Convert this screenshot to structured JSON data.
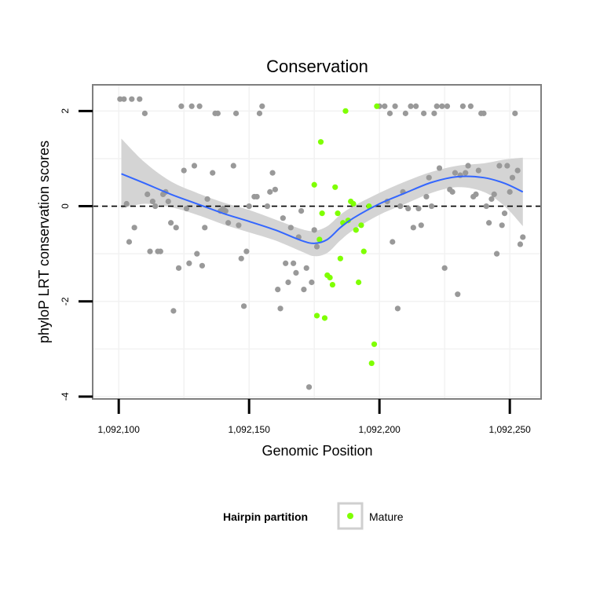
{
  "chart_data": {
    "type": "scatter",
    "title": "Conservation",
    "xlabel": "Genomic Position",
    "ylabel": "phyloP LRT conservation scores",
    "xlim": [
      1092090,
      1092262
    ],
    "ylim": [
      -4.05,
      2.55
    ],
    "x_ticks": [
      {
        "value": 1092100,
        "label": "1,092,100"
      },
      {
        "value": 1092150,
        "label": "1,092,150"
      },
      {
        "value": 1092200,
        "label": "1,092,200"
      },
      {
        "value": 1092250,
        "label": "1,092,250"
      }
    ],
    "y_ticks": [
      {
        "value": 2,
        "label": "2"
      },
      {
        "value": 0,
        "label": "0"
      },
      {
        "value": -2,
        "label": "-2"
      },
      {
        "value": -4,
        "label": "-4"
      }
    ],
    "reference_line": 0,
    "colors": {
      "other_points": "#999999",
      "mature_points": "#7fff00",
      "smooth_line": "#3366ff",
      "confidence_band": "#d4d4d4",
      "panel_border": "#7f7f7f",
      "gridline": "#f2f2f2"
    },
    "legend": {
      "title": "Hairpin partition",
      "items": [
        {
          "label": "Mature",
          "color": "#7fff00"
        }
      ]
    },
    "series": [
      {
        "name": "Other",
        "points": [
          [
            1092100.5,
            2.25
          ],
          [
            1092102,
            2.25
          ],
          [
            1092105,
            2.25
          ],
          [
            1092108,
            2.25
          ],
          [
            1092110,
            1.95
          ],
          [
            1092111,
            0.25
          ],
          [
            1092113,
            0.1
          ],
          [
            1092112,
            -0.95
          ],
          [
            1092115,
            -0.95
          ],
          [
            1092116,
            -0.95
          ],
          [
            1092117,
            0.25
          ],
          [
            1092118,
            0.3
          ],
          [
            1092119,
            0.1
          ],
          [
            1092120,
            -0.35
          ],
          [
            1092121,
            -2.2
          ],
          [
            1092122,
            -0.45
          ],
          [
            1092123,
            -1.3
          ],
          [
            1092124,
            2.1
          ],
          [
            1092125,
            0.75
          ],
          [
            1092126,
            -0.05
          ],
          [
            1092127,
            -1.2
          ],
          [
            1092128,
            2.1
          ],
          [
            1092129,
            0.85
          ],
          [
            1092130,
            -1.0
          ],
          [
            1092131,
            2.1
          ],
          [
            1092132,
            -1.25
          ],
          [
            1092133,
            -0.45
          ],
          [
            1092134,
            0.15
          ],
          [
            1092136,
            0.7
          ],
          [
            1092137,
            1.95
          ],
          [
            1092138,
            1.95
          ],
          [
            1092139,
            -0.1
          ],
          [
            1092140,
            -0.05
          ],
          [
            1092141,
            -0.1
          ],
          [
            1092142,
            -0.35
          ],
          [
            1092144,
            0.85
          ],
          [
            1092145,
            1.95
          ],
          [
            1092146,
            -0.4
          ],
          [
            1092147,
            -1.1
          ],
          [
            1092148,
            -2.1
          ],
          [
            1092149,
            -0.95
          ],
          [
            1092150,
            0.0
          ],
          [
            1092152,
            0.2
          ],
          [
            1092153,
            0.2
          ],
          [
            1092154,
            1.95
          ],
          [
            1092155,
            2.1
          ],
          [
            1092157,
            0.0
          ],
          [
            1092158,
            0.3
          ],
          [
            1092159,
            0.7
          ],
          [
            1092160,
            0.35
          ],
          [
            1092161,
            -1.75
          ],
          [
            1092162,
            -2.15
          ],
          [
            1092163,
            -0.25
          ],
          [
            1092164,
            -1.2
          ],
          [
            1092165,
            -1.6
          ],
          [
            1092166,
            -0.45
          ],
          [
            1092167,
            -1.2
          ],
          [
            1092168,
            -1.4
          ],
          [
            1092169,
            -0.65
          ],
          [
            1092170,
            -0.1
          ],
          [
            1092171,
            -1.75
          ],
          [
            1092172,
            -1.3
          ],
          [
            1092173,
            -3.8
          ],
          [
            1092174,
            -1.6
          ],
          [
            1092175,
            -0.5
          ],
          [
            1092176,
            -0.85
          ],
          [
            1092200,
            2.1
          ],
          [
            1092202,
            2.1
          ],
          [
            1092203,
            0.1
          ],
          [
            1092205,
            -0.75
          ],
          [
            1092204,
            1.95
          ],
          [
            1092206,
            2.1
          ],
          [
            1092207,
            -2.15
          ],
          [
            1092208,
            0.0
          ],
          [
            1092209,
            0.3
          ],
          [
            1092210,
            1.95
          ],
          [
            1092211,
            -0.05
          ],
          [
            1092212,
            2.1
          ],
          [
            1092213,
            -0.45
          ],
          [
            1092214,
            2.1
          ],
          [
            1092215,
            -0.05
          ],
          [
            1092216,
            -0.4
          ],
          [
            1092217,
            1.95
          ],
          [
            1092218,
            0.2
          ],
          [
            1092219,
            0.6
          ],
          [
            1092220,
            0.0
          ],
          [
            1092221,
            1.95
          ],
          [
            1092222,
            2.1
          ],
          [
            1092223,
            0.8
          ],
          [
            1092224,
            2.1
          ],
          [
            1092225,
            -1.3
          ],
          [
            1092226,
            2.1
          ],
          [
            1092227,
            0.35
          ],
          [
            1092228,
            0.3
          ],
          [
            1092229,
            0.7
          ],
          [
            1092230,
            -1.85
          ],
          [
            1092231,
            0.65
          ],
          [
            1092232,
            2.1
          ],
          [
            1092233,
            0.7
          ],
          [
            1092234,
            0.85
          ],
          [
            1092235,
            2.1
          ],
          [
            1092236,
            0.2
          ],
          [
            1092237,
            0.25
          ],
          [
            1092238,
            0.75
          ],
          [
            1092239,
            1.95
          ],
          [
            1092240,
            1.95
          ],
          [
            1092241,
            0.0
          ],
          [
            1092242,
            -0.35
          ],
          [
            1092243,
            0.15
          ],
          [
            1092244,
            0.25
          ],
          [
            1092245,
            -1.0
          ],
          [
            1092246,
            0.85
          ],
          [
            1092247,
            -0.4
          ],
          [
            1092248,
            -0.15
          ],
          [
            1092249,
            0.85
          ],
          [
            1092250,
            0.3
          ],
          [
            1092251,
            0.6
          ],
          [
            1092252,
            1.95
          ],
          [
            1092253,
            0.75
          ],
          [
            1092254,
            -0.8
          ],
          [
            1092255,
            -0.65
          ],
          [
            1092103,
            0.05
          ],
          [
            1092104,
            -0.75
          ],
          [
            1092106,
            -0.45
          ],
          [
            1092114,
            0.0
          ]
        ]
      },
      {
        "name": "Mature",
        "points": [
          [
            1092175,
            0.45
          ],
          [
            1092176,
            -2.3
          ],
          [
            1092177,
            -0.7
          ],
          [
            1092177.5,
            1.35
          ],
          [
            1092178,
            -0.15
          ],
          [
            1092179,
            -2.35
          ],
          [
            1092180,
            -1.45
          ],
          [
            1092181,
            -1.5
          ],
          [
            1092182,
            -1.65
          ],
          [
            1092183,
            0.4
          ],
          [
            1092184,
            -0.15
          ],
          [
            1092185,
            -1.1
          ],
          [
            1092186,
            -0.35
          ],
          [
            1092187,
            2.0
          ],
          [
            1092188,
            -0.3
          ],
          [
            1092189,
            0.1
          ],
          [
            1092190,
            0.05
          ],
          [
            1092191,
            -0.5
          ],
          [
            1092192,
            -1.6
          ],
          [
            1092193,
            -0.4
          ],
          [
            1092194,
            -0.95
          ],
          [
            1092196,
            0.0
          ],
          [
            1092197,
            -3.3
          ],
          [
            1092198,
            -2.9
          ],
          [
            1092199,
            2.1
          ]
        ]
      }
    ],
    "smooth_fit": [
      {
        "x": 1092101,
        "y": 0.68,
        "lo": -0.05,
        "hi": 1.42
      },
      {
        "x": 1092110,
        "y": 0.48,
        "lo": 0.05,
        "hi": 0.92
      },
      {
        "x": 1092120,
        "y": 0.25,
        "lo": -0.02,
        "hi": 0.52
      },
      {
        "x": 1092130,
        "y": 0.05,
        "lo": -0.18,
        "hi": 0.28
      },
      {
        "x": 1092140,
        "y": -0.15,
        "lo": -0.38,
        "hi": 0.08
      },
      {
        "x": 1092150,
        "y": -0.32,
        "lo": -0.55,
        "hi": -0.08
      },
      {
        "x": 1092160,
        "y": -0.5,
        "lo": -0.72,
        "hi": -0.28
      },
      {
        "x": 1092170,
        "y": -0.72,
        "lo": -0.95,
        "hi": -0.48
      },
      {
        "x": 1092175,
        "y": -0.78,
        "lo": -1.05,
        "hi": -0.52
      },
      {
        "x": 1092180,
        "y": -0.7,
        "lo": -0.98,
        "hi": -0.42
      },
      {
        "x": 1092185,
        "y": -0.45,
        "lo": -0.72,
        "hi": -0.18
      },
      {
        "x": 1092190,
        "y": -0.25,
        "lo": -0.5,
        "hi": 0.0
      },
      {
        "x": 1092200,
        "y": 0.05,
        "lo": -0.18,
        "hi": 0.28
      },
      {
        "x": 1092210,
        "y": 0.28,
        "lo": 0.05,
        "hi": 0.52
      },
      {
        "x": 1092220,
        "y": 0.5,
        "lo": 0.28,
        "hi": 0.72
      },
      {
        "x": 1092230,
        "y": 0.62,
        "lo": 0.4,
        "hi": 0.85
      },
      {
        "x": 1092240,
        "y": 0.6,
        "lo": 0.3,
        "hi": 0.9
      },
      {
        "x": 1092248,
        "y": 0.48,
        "lo": 0.0,
        "hi": 0.98
      },
      {
        "x": 1092255,
        "y": 0.3,
        "lo": -0.42,
        "hi": 1.02
      }
    ]
  }
}
